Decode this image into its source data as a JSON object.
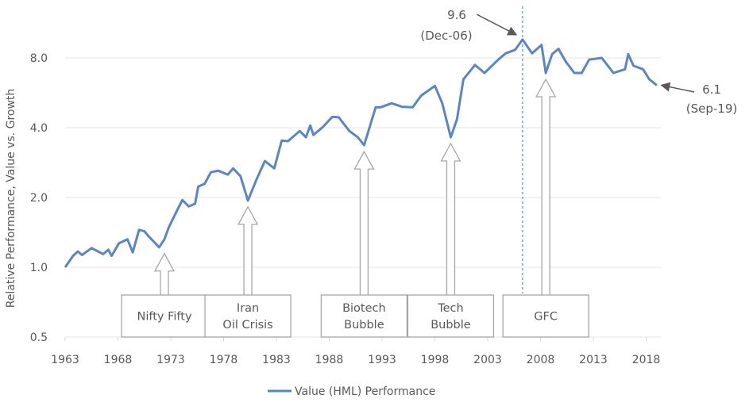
{
  "chart_data": {
    "type": "line",
    "title": "",
    "xlabel": "",
    "ylabel": "Relative Performance, Value vs. Growth",
    "yscale": "log2",
    "ylim": [
      0.5,
      11
    ],
    "xlim": [
      1963,
      2019.4
    ],
    "yticks": [
      0.5,
      1.0,
      2.0,
      4.0,
      8.0
    ],
    "ytick_labels": [
      "0.5",
      "1.0",
      "2.0",
      "4.0",
      "8.0"
    ],
    "xticks": [
      1963,
      1968,
      1973,
      1978,
      1983,
      1988,
      1993,
      1998,
      2003,
      2008,
      2013,
      2018
    ],
    "xtick_labels": [
      "1963",
      "1968",
      "1973",
      "1978",
      "1983",
      "1988",
      "1993",
      "1998",
      "2003",
      "2008",
      "2013",
      "2018"
    ],
    "grid": "horizontal",
    "legend_position": "bottom",
    "series": [
      {
        "name": "Value (HML) Performance",
        "color": "#5b86c5",
        "x": [
          1963.0,
          1963.75,
          1964.2,
          1964.6,
          1965.5,
          1966.6,
          1967.1,
          1967.4,
          1968.1,
          1968.9,
          1969.4,
          1970.0,
          1970.5,
          1970.9,
          1971.9,
          1972.4,
          1972.8,
          1973.6,
          1974.1,
          1974.7,
          1975.3,
          1975.6,
          1976.2,
          1976.8,
          1977.5,
          1978.4,
          1978.9,
          1979.6,
          1980.3,
          1981.1,
          1981.9,
          1982.8,
          1983.5,
          1984.1,
          1985.2,
          1985.8,
          1986.2,
          1986.5,
          1987.4,
          1988.3,
          1988.9,
          1989.9,
          1990.7,
          1991.3,
          1991.9,
          1992.4,
          1992.9,
          1993.9,
          1994.9,
          1995.9,
          1996.7,
          1998.0,
          1998.7,
          1999.5,
          2000.1,
          2000.7,
          2001.8,
          2002.7,
          2004.0,
          2004.7,
          2005.6,
          2006.3,
          2007.2,
          2008.1,
          2008.5,
          2009.1,
          2009.7,
          2010.4,
          2011.2,
          2011.9,
          2012.6,
          2013.8,
          2014.9,
          2016.0,
          2016.3,
          2016.8,
          2017.7,
          2018.3,
          2019.0
        ],
        "values": [
          1.0,
          1.12,
          1.17,
          1.13,
          1.21,
          1.14,
          1.19,
          1.12,
          1.27,
          1.32,
          1.16,
          1.45,
          1.43,
          1.36,
          1.22,
          1.32,
          1.48,
          1.76,
          1.95,
          1.83,
          1.88,
          2.23,
          2.29,
          2.57,
          2.61,
          2.51,
          2.67,
          2.47,
          1.94,
          2.38,
          2.87,
          2.67,
          3.52,
          3.5,
          3.87,
          3.64,
          4.09,
          3.72,
          4.03,
          4.46,
          4.43,
          3.87,
          3.64,
          3.36,
          4.13,
          4.9,
          4.9,
          5.1,
          4.92,
          4.9,
          5.5,
          6.06,
          5.1,
          3.64,
          4.36,
          6.46,
          7.46,
          6.89,
          7.86,
          8.37,
          8.67,
          9.6,
          8.37,
          9.1,
          6.89,
          8.3,
          8.75,
          7.7,
          6.89,
          6.89,
          7.86,
          8.0,
          6.89,
          7.15,
          8.3,
          7.4,
          7.15,
          6.46,
          6.1
        ]
      }
    ],
    "annotations": {
      "peak": {
        "value": "9.6",
        "date": "(Dec-06)",
        "x": 2006.3,
        "y": 9.6
      },
      "latest": {
        "value": "6.1",
        "date": "(Sep-19)",
        "x": 2019.0,
        "y": 6.1
      },
      "peak_marker_x": 2006.3,
      "events": [
        {
          "lines": [
            "Nifty Fifty"
          ],
          "x": 1972.4,
          "y": 1.22
        },
        {
          "lines": [
            "Iran",
            "Oil Crisis"
          ],
          "x": 1980.3,
          "y": 1.94
        },
        {
          "lines": [
            "Biotech",
            "Bubble"
          ],
          "x": 1991.3,
          "y": 3.36
        },
        {
          "lines": [
            "Tech",
            "Bubble"
          ],
          "x": 1999.5,
          "y": 3.64
        },
        {
          "lines": [
            "GFC"
          ],
          "x": 2008.5,
          "y": 6.89
        }
      ]
    }
  }
}
